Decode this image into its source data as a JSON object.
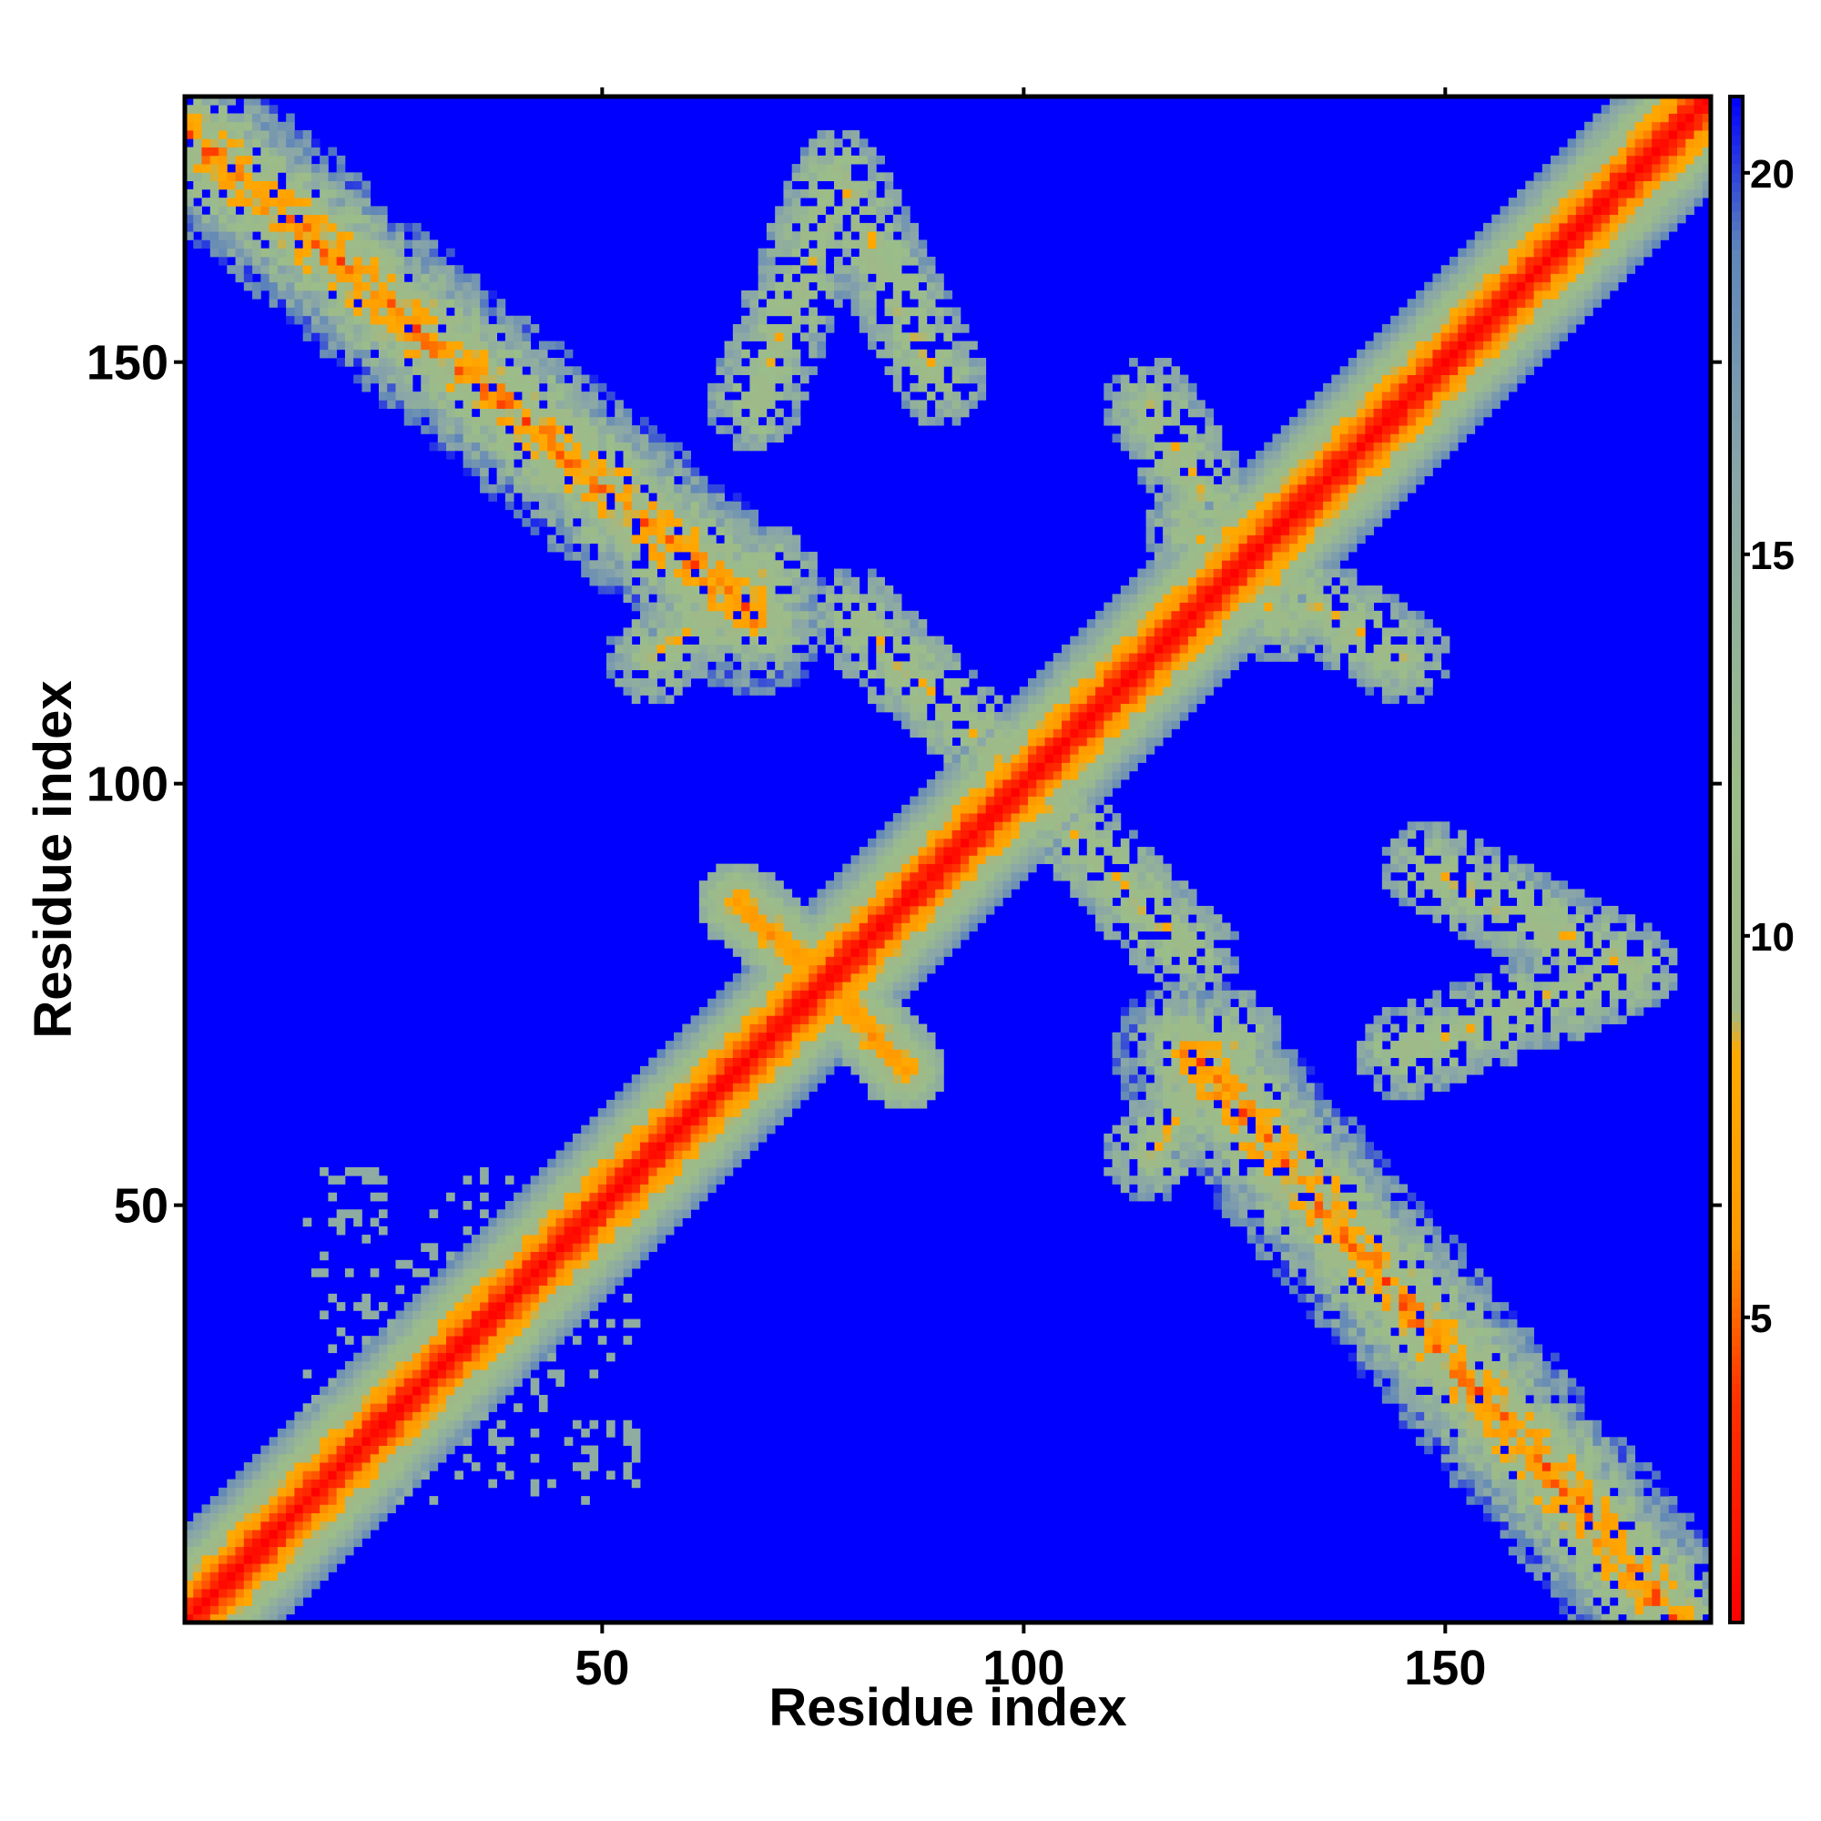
{
  "chart_data": {
    "type": "heatmap",
    "description": "Residue-residue distance map (symmetric); low values along the diagonal and in contact bands, high values elsewhere.",
    "xlabel": "Residue index",
    "ylabel": "Residue index",
    "xlim": [
      1,
      181
    ],
    "ylim": [
      1,
      181
    ],
    "xticks": [
      50,
      100,
      150
    ],
    "yticks": [
      50,
      100,
      150
    ],
    "colorbar": {
      "ticks": [
        5,
        10,
        15,
        20
      ],
      "range": [
        1,
        21
      ],
      "colormap": [
        {
          "value": 1,
          "color": "#ff0000"
        },
        {
          "value": 4,
          "color": "#ff3300"
        },
        {
          "value": 6,
          "color": "#ff9900"
        },
        {
          "value": 8.5,
          "color": "#ffaa00"
        },
        {
          "value": 9,
          "color": "#a0b888"
        },
        {
          "value": 12,
          "color": "#9bbd8a"
        },
        {
          "value": 16,
          "color": "#8aa6a8"
        },
        {
          "value": 19,
          "color": "#5f86b8"
        },
        {
          "value": 21,
          "color": "#0000ff"
        }
      ]
    },
    "n_residues": 181,
    "background_value": 21,
    "features": [
      {
        "name": "main diagonal",
        "type": "diagonal",
        "from": [
          1,
          1
        ],
        "to": [
          181,
          181
        ]
      },
      {
        "name": "antiparallel band A",
        "type": "antidiagonal",
        "from": [
          1,
          177
        ],
        "to": [
          68,
          120
        ]
      },
      {
        "name": "antiparallel band B (symmetric)",
        "type": "antidiagonal",
        "from": [
          120,
          68
        ],
        "to": [
          177,
          1
        ]
      },
      {
        "name": "hairpin near 75",
        "type": "antidiagonal",
        "from": [
          66,
          86
        ],
        "to": [
          88,
          66
        ]
      },
      {
        "name": "contact patch",
        "type": "patch",
        "center": [
          85,
          165
        ]
      },
      {
        "name": "contact patch (symmetric)",
        "type": "patch",
        "center": [
          165,
          85
        ]
      }
    ]
  }
}
